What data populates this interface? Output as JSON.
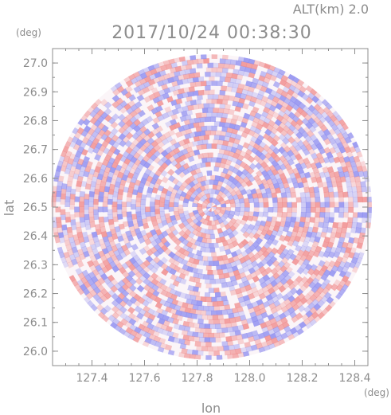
{
  "chart_data": {
    "type": "heatmap",
    "title": "2017/10/24 00:38:30",
    "altitude_label": "ALT(km) 2.0",
    "xlabel": "lon",
    "ylabel": "lat",
    "x_unit": "(deg)",
    "y_unit": "(deg)",
    "xlim": [
      127.25,
      128.45
    ],
    "ylim": [
      25.95,
      27.05
    ],
    "x_ticks": [
      "127.4",
      "127.6",
      "127.8",
      "128.0",
      "128.2",
      "128.4"
    ],
    "y_ticks": [
      "26.0",
      "26.1",
      "26.2",
      "26.3",
      "26.4",
      "26.5",
      "26.6",
      "26.7",
      "26.8",
      "26.9",
      "27.0"
    ],
    "x_tick_values": [
      127.4,
      127.6,
      127.8,
      128.0,
      128.2,
      128.4
    ],
    "y_tick_values": [
      26.0,
      26.1,
      26.2,
      26.3,
      26.4,
      26.5,
      26.6,
      26.7,
      26.8,
      26.9,
      27.0
    ],
    "radar_center": {
      "lon": 127.855,
      "lat": 26.5
    },
    "radar_range_deg": {
      "lon": 0.61,
      "lat": 0.53
    },
    "colors": {
      "positive": "#f08c8c",
      "negative": "#8c8cf0",
      "axis": "#8c8c8c"
    }
  }
}
